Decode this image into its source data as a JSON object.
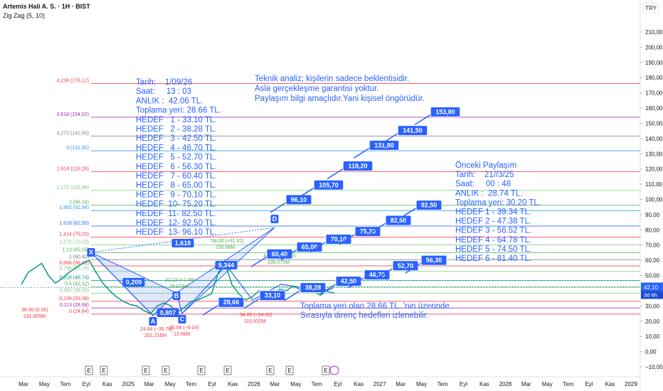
{
  "header": {
    "title": "Artemis Hali A. S. · 1H · BIST",
    "indicator": "Zig Zag (5, 10)",
    "currency": "TRY"
  },
  "price_axis": {
    "ticks": [
      {
        "value": 210,
        "label": "210,00"
      },
      {
        "value": 200,
        "label": "200,00"
      },
      {
        "value": 190,
        "label": "190,00"
      },
      {
        "value": 180,
        "label": "180,00"
      },
      {
        "value": 170,
        "label": "170,00"
      },
      {
        "value": 160,
        "label": "160,00"
      },
      {
        "value": 150,
        "label": "150,00"
      },
      {
        "value": 140,
        "label": "140,00"
      },
      {
        "value": 130,
        "label": "130,00"
      },
      {
        "value": 120,
        "label": "120,00"
      },
      {
        "value": 110,
        "label": "110,00"
      },
      {
        "value": 100,
        "label": "100,00"
      },
      {
        "value": 90,
        "label": "90,00"
      },
      {
        "value": 80,
        "label": "80,00"
      },
      {
        "value": 70,
        "label": "70,00"
      },
      {
        "value": 60,
        "label": "60,00"
      },
      {
        "value": 50,
        "label": "50,00"
      },
      {
        "value": 40,
        "label": "40,00"
      },
      {
        "value": 30,
        "label": "30,00"
      },
      {
        "value": 20,
        "label": "20,00"
      },
      {
        "value": 10,
        "label": "10,00"
      },
      {
        "value": 0,
        "label": "0,00"
      },
      {
        "value": -10,
        "label": "−10,00"
      }
    ],
    "current": {
      "value": 42.1,
      "label": "42,10",
      "countdown": "3d 6h"
    }
  },
  "time_axis": [
    "Mar",
    "May",
    "Tem",
    "Eyl",
    "Kas",
    "2025",
    "Mar",
    "May",
    "Tem",
    "Eyl",
    "Kas",
    "2026",
    "Mar",
    "May",
    "Tem",
    "Eyl",
    "Kas",
    "2027",
    "Mar",
    "May",
    "Tem",
    "Eyl",
    "Kas",
    "2028",
    "Mar",
    "May",
    "Tem",
    "Eyl",
    "Kas",
    "2029"
  ],
  "events": [
    "E",
    "E",
    "E",
    "E",
    "E",
    "E",
    "E",
    "E",
    "E"
  ],
  "price": {
    "values": [
      44,
      52,
      55,
      58,
      50,
      45,
      48,
      52,
      55,
      58,
      60,
      52,
      45,
      40,
      36,
      33,
      31,
      30,
      27,
      25,
      30,
      32,
      30,
      26,
      29,
      33,
      34,
      36,
      38,
      52,
      58,
      44,
      38,
      34,
      36,
      40,
      38,
      37,
      41,
      40,
      43,
      41,
      43,
      40,
      37,
      40,
      42.1
    ]
  },
  "fib_levels": [
    {
      "label": "4,236 (176,12)",
      "price": 176.12,
      "color": "#f23645"
    },
    {
      "label": "3,618 (154,02)",
      "price": 154.02,
      "color": "#9c27b0"
    },
    {
      "label": "3,272 (141,65)",
      "price": 141.65,
      "color": "#787b86"
    },
    {
      "label": "3 (131,92)",
      "price": 131.92,
      "color": "#2196f3"
    },
    {
      "label": "2,618 (118,26)",
      "price": 118.26,
      "color": "#f23645"
    },
    {
      "label": "2,272 (105,89)",
      "price": 105.89,
      "color": "#81c784"
    },
    {
      "label": "2 (96,16)",
      "price": 96.16,
      "color": "#4caf50"
    },
    {
      "label": "1,902 (92,66)",
      "price": 92.66,
      "color": "#2196f3"
    },
    {
      "label": "1,618 (82,50)",
      "price": 82.5,
      "color": "#2962ff"
    },
    {
      "label": "1,414 (75,20)",
      "price": 75.2,
      "color": "#f23645"
    },
    {
      "label": "1,272 (70,12)",
      "price": 70.12,
      "color": "#81c784"
    },
    {
      "label": "1,13 (65,05)",
      "price": 65.05,
      "color": "#4caf50"
    },
    {
      "label": "1 (60,40)",
      "price": 60.4,
      "color": "#787b86"
    },
    {
      "label": "0,886 (56,32)",
      "price": 56.32,
      "color": "#f23645"
    },
    {
      "label": "0,786 (52,74)",
      "price": 52.74,
      "color": "#81c784"
    },
    {
      "label": "0,618 (46,74)",
      "price": 46.74,
      "color": "#009688"
    },
    {
      "label": "0,5 (42,52)",
      "price": 42.52,
      "color": "#4caf50"
    },
    {
      "label": "0,382 (38,30)",
      "price": 38.3,
      "color": "#81c784"
    },
    {
      "label": "0,236 (33,08)",
      "price": 33.08,
      "color": "#f23645"
    },
    {
      "label": "0,113 (28,68)",
      "price": 28.68,
      "color": "#9c27b0"
    },
    {
      "label": "0 (24,64)",
      "price": 24.64,
      "color": "#f23645"
    }
  ],
  "targets": [
    {
      "label": "28,66",
      "value": 28.66
    },
    {
      "label": "33,10",
      "value": 33.1
    },
    {
      "label": "38,28",
      "value": 38.28
    },
    {
      "label": "42,50",
      "value": 42.5
    },
    {
      "label": "46,70",
      "value": 46.7
    },
    {
      "label": "52,70",
      "value": 52.7
    },
    {
      "label": "56,30",
      "value": 56.3
    },
    {
      "label": "60,40",
      "value": 60.4
    },
    {
      "label": "65,00",
      "value": 65
    },
    {
      "label": "70,10",
      "value": 70.1
    },
    {
      "label": "75,20",
      "value": 75.2
    },
    {
      "label": "82,50",
      "value": 82.5
    },
    {
      "label": "92,50",
      "value": 92.5
    },
    {
      "label": "96,10",
      "value": 96.1
    },
    {
      "label": "105,70",
      "value": 105.7
    },
    {
      "label": "118,20",
      "value": 118.2
    },
    {
      "label": "131,80",
      "value": 131.8
    },
    {
      "label": "141,50",
      "value": 141.5
    },
    {
      "label": "153,80",
      "value": 153.8
    }
  ],
  "wave_labels": [
    "X",
    "A",
    "B",
    "C",
    "D",
    "0,209",
    "0,807",
    "1,618",
    "9,344"
  ],
  "annotations": [
    {
      "text": "58.00 (+31.92)",
      "color": "#4caf50"
    },
    {
      "text": "230.98M",
      "color": "#4caf50"
    },
    {
      "text": "32.12 (+7.48)",
      "color": "#4caf50"
    },
    {
      "text": "79.676M",
      "color": "#4caf50"
    },
    {
      "text": "36.90 (0.00)",
      "color": "#f23645"
    },
    {
      "text": "231.805M",
      "color": "#f23645"
    },
    {
      "text": "24.64 (−35.76)",
      "color": "#f23645"
    },
    {
      "text": "201.216M",
      "color": "#f23645"
    },
    {
      "text": "26.08 (−6.04)",
      "color": "#f23645"
    },
    {
      "text": "13.56M",
      "color": "#f23645"
    },
    {
      "text": "34.00 (−24.00)",
      "color": "#f23645"
    },
    {
      "text": "110.932M",
      "color": "#f23645"
    },
    {
      "text": "48.88 (+34.00)",
      "color": "#4caf50"
    },
    {
      "text": "106.075M",
      "color": "#4caf50"
    }
  ],
  "notes": {
    "current": [
      "Tarih:    1/09/26",
      "Saat:     13 : 03",
      "ANLIK :  42.06 TL.",
      "Toplama yeri: 28.66 TL.",
      "HEDEF   1 - 33.10 TL.",
      "HEDEF   2 - 38.28 TL.",
      "HEDEF   3 - 42.50 TL.",
      "HEDEF   4 - 46.70 TL.",
      "HEDEF   5 - 52.70 TL.",
      "HEDEF   6 - 56.30 TL.",
      "HEDEF   7 - 60.40 TL.",
      "HEDEF   8 - 65.00 TL.",
      "HEDEF   9 - 70.10 TL.",
      "HEDEF  10- 75.20 TL.",
      "HEDEF  11- 82.50 TL.",
      "HEDEF  12- 92.50 TL.",
      "HEDEF  13- 96.10 TL."
    ],
    "disclaimer": [
      "Teknik analiz; kişilerin sadece beklentisidir.",
      "Asla gerçekleşme garantisi yoktur.",
      "Paylaşım bilgi amaçlıdır.Yani kişisel öngörüdür."
    ],
    "previous": [
      "Önceki Paylaşım",
      "Tarih:    21//3/25",
      "Saat:     00 : 48",
      "ANLIK :  28.74 TL.",
      "Toplama yeri: 30.20 TL.",
      "HEDEF 1 - 39.34 TL.",
      "HEDEF 2 - 47.38 TL.",
      "HEDEF 3 - 56.52 TL.",
      "HEDEF 4 - 64.78 TL.",
      "HEDEF 5 - 74.50 TL.",
      "HEDEF 6 - 81.40 TL."
    ],
    "bottom": [
      "Toplama yeri olan 28.66 TL. 'nin üzerinde",
      "Sırasıyla direnç hedefleri izlenebilir."
    ]
  }
}
